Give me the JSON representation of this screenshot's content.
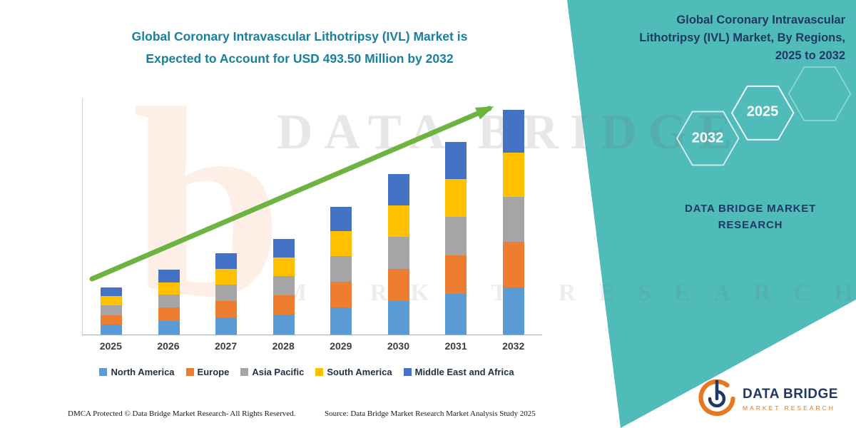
{
  "colors": {
    "teal_panel": "#4FBCB9",
    "navy": "#1F3864",
    "orange": "#E87722",
    "chart_title": "#187F9E",
    "arrow": "#6CB33F"
  },
  "watermark": {
    "line1": "DATA BRIDGE",
    "line2": "MARKET RESEARCH"
  },
  "left": {
    "footer_left": "DMCA Protected © Data Bridge Market Research-  All Rights Reserved.",
    "footer_source": "Source: Data Bridge Market Research  Market Analysis Study 2025"
  },
  "right_panel": {
    "title": "Global Coronary Intravascular\nLithotripsy (IVL) Market, By Regions,\n2025 to 2032",
    "hexagon_years": {
      "back": "2032",
      "front": "2025"
    },
    "brand_text": "DATA BRIDGE MARKET\nRESEARCH"
  },
  "logo": {
    "name": "DATA BRIDGE",
    "tagline": "MARKET RESEARCH"
  },
  "chart_data": {
    "type": "bar",
    "stacked": true,
    "title": "Global Coronary Intravascular Lithotripsy (IVL) Market is\nExpected to Account for USD 493.50 Million by 2032",
    "categories": [
      "2025",
      "2026",
      "2027",
      "2028",
      "2029",
      "2030",
      "2031",
      "2032"
    ],
    "series": [
      {
        "name": "North America",
        "color": "#5B9BD5",
        "values": [
          22,
          30,
          37,
          44,
          59,
          74,
          89,
          104
        ]
      },
      {
        "name": "Europe",
        "color": "#ED7D31",
        "values": [
          21,
          29,
          36,
          42,
          57,
          71,
          85,
          100
        ]
      },
      {
        "name": "Asia Pacific",
        "color": "#A5A5A5",
        "values": [
          21,
          28,
          36,
          42,
          56,
          70,
          85,
          99
        ]
      },
      {
        "name": "South America",
        "color": "#FFC000",
        "values": [
          20,
          28,
          35,
          41,
          55,
          69,
          83,
          97
        ]
      },
      {
        "name": "Middle East and Africa",
        "color": "#4472C4",
        "values": [
          20,
          27,
          34,
          41,
          54,
          68,
          81,
          93.5
        ]
      }
    ],
    "totals_estimated": [
      104,
      142,
      178,
      210,
      281,
      352,
      423,
      493.5
    ],
    "value_unit": "USD Million",
    "ylim": [
      0,
      520
    ],
    "grid": false,
    "legend_position": "bottom",
    "annotations": {
      "trend_arrow": "rising from 2025 to 2032"
    }
  }
}
